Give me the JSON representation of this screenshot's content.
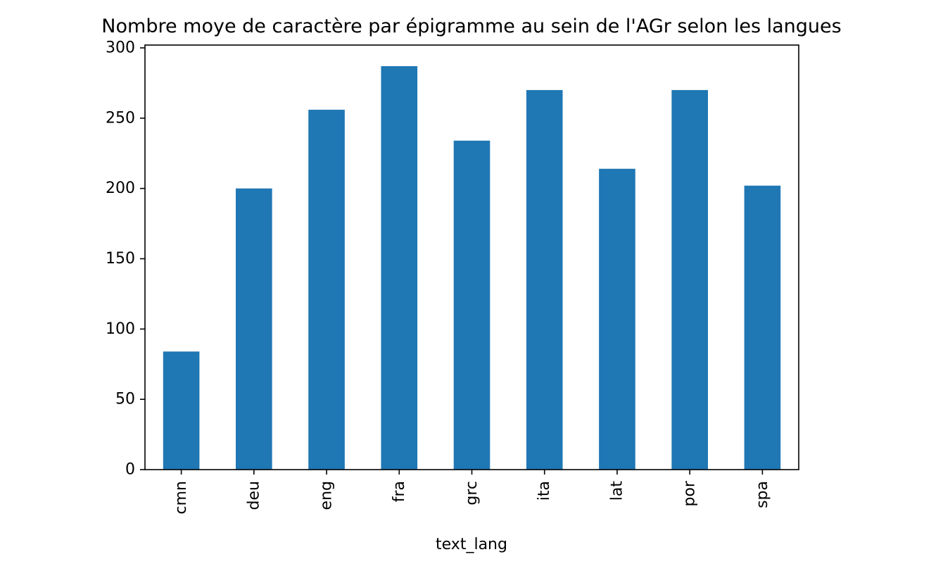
{
  "chart_data": {
    "type": "bar",
    "title": "Nombre moye de caractère par épigramme au sein de l'AGr selon les langues",
    "xlabel": "text_lang",
    "ylabel": "",
    "categories": [
      "cmn",
      "deu",
      "eng",
      "fra",
      "grc",
      "ita",
      "lat",
      "por",
      "spa"
    ],
    "values": [
      84,
      200,
      256,
      287,
      234,
      270,
      214,
      270,
      202
    ],
    "ylim": [
      0,
      302
    ],
    "yticks": [
      0,
      50,
      100,
      150,
      200,
      250,
      300
    ],
    "ytick_labels": [
      "0",
      "50",
      "100",
      "150",
      "200",
      "250",
      "300"
    ],
    "bar_color": "#1f77b4",
    "grid": false,
    "legend": "none",
    "xtick_rotation": "vertical"
  }
}
